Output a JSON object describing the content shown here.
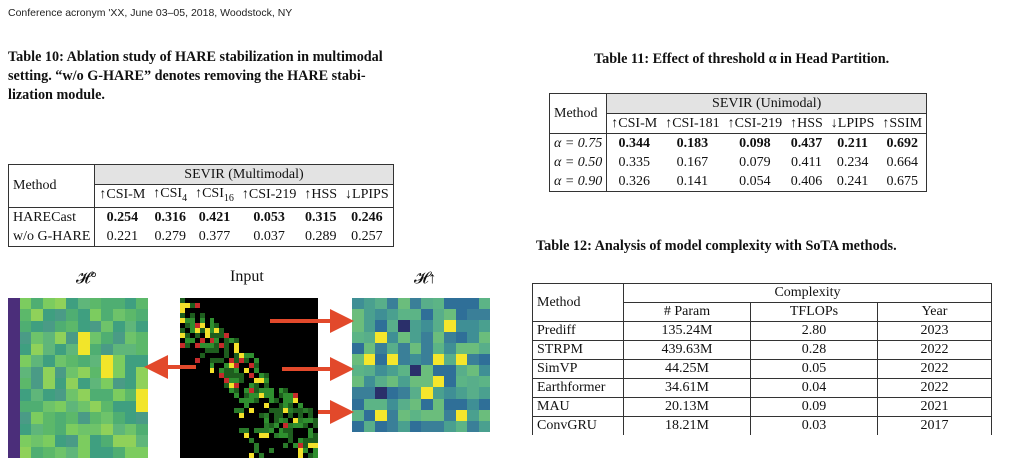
{
  "header": "Conference acronym 'XX, June 03–05, 2018, Woodstock, NY",
  "table10": {
    "caption_lines": [
      "Table 10: Ablation study of HARE stabilization in multimodal",
      "setting. “w/o G-HARE” denotes removing the HARE stabi-",
      "lization module."
    ],
    "method_header": "Method",
    "group_header": "SEVIR (Multimodal)",
    "columns": [
      "↑CSI-M",
      "↑CSI",
      "↑CSI",
      "↑CSI-219",
      "↑HSS",
      "↓LPIPS"
    ],
    "column_subscripts": [
      "",
      "4",
      "16",
      "",
      "",
      ""
    ],
    "rows": [
      {
        "method": "HARECast",
        "values": [
          "0.254",
          "0.316",
          "0.421",
          "0.053",
          "0.315",
          "0.246"
        ],
        "bold": true
      },
      {
        "method": "w/o G-HARE",
        "values": [
          "0.221",
          "0.279",
          "0.377",
          "0.037",
          "0.289",
          "0.257"
        ],
        "bold": false
      }
    ]
  },
  "table11": {
    "caption": "Table 11: Effect of threshold α in Head Partition.",
    "method_header": "Method",
    "group_header": "SEVIR (Unimodal)",
    "columns": [
      "↑CSI-M",
      "↑CSI-181",
      "↑CSI-219",
      "↑HSS",
      "↓LPIPS",
      "↑SSIM"
    ],
    "rows": [
      {
        "method": "α = 0.75",
        "values": [
          "0.344",
          "0.183",
          "0.098",
          "0.437",
          "0.211",
          "0.692"
        ],
        "bold": true
      },
      {
        "method": "α = 0.50",
        "values": [
          "0.335",
          "0.167",
          "0.079",
          "0.411",
          "0.234",
          "0.664"
        ],
        "bold": false
      },
      {
        "method": "α = 0.90",
        "values": [
          "0.326",
          "0.141",
          "0.054",
          "0.406",
          "0.241",
          "0.675"
        ],
        "bold": false
      }
    ]
  },
  "table12": {
    "caption": "Table 12: Analysis of model complexity with SoTA methods.",
    "method_header": "Method",
    "group_header": "Complexity",
    "columns": [
      "# Param",
      "TFLOPs",
      "Year"
    ],
    "rows": [
      {
        "method": "Prediff",
        "values": [
          "135.24M",
          "2.80",
          "2023"
        ]
      },
      {
        "method": "STRPM",
        "values": [
          "439.63M",
          "0.28",
          "2022"
        ]
      },
      {
        "method": "SimVP",
        "values": [
          "44.25M",
          "0.05",
          "2022"
        ]
      },
      {
        "method": "Earthformer",
        "values": [
          "34.61M",
          "0.04",
          "2022"
        ]
      },
      {
        "method": "MAU",
        "values": [
          "20.13M",
          "0.09",
          "2021"
        ]
      },
      {
        "method": "ConvGRU",
        "values": [
          "18.21M",
          "0.03",
          "2017"
        ]
      }
    ]
  },
  "figure": {
    "label_left": "𝓗°",
    "label_middle": "Input",
    "label_right": "𝓗↑",
    "arrow_color": "#e2492b"
  }
}
